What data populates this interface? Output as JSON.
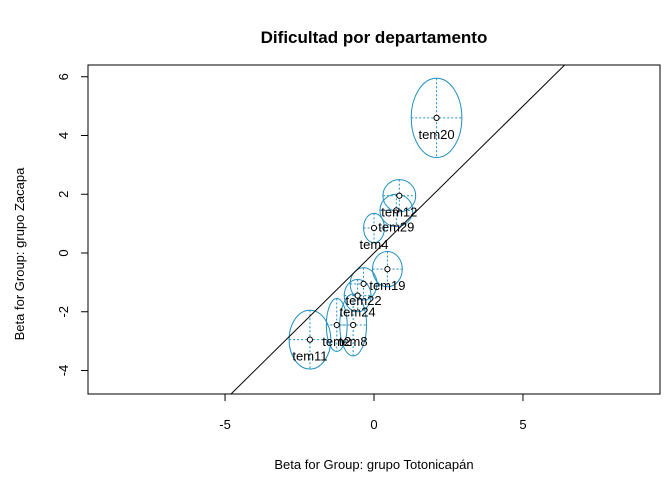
{
  "chart_data": {
    "type": "scatter",
    "title": "Dificultad por departamento",
    "xlabel": "Beta for Group: grupo Totonicapán",
    "ylabel": "Beta for Group: grupo Zacapa",
    "xlim": [
      -9.6,
      9.6
    ],
    "ylim": [
      -4.8,
      6.4
    ],
    "xticks": [
      -5,
      0,
      5
    ],
    "yticks": [
      -4,
      -2,
      0,
      2,
      4,
      6
    ],
    "identity_line": true,
    "colors": {
      "ellipse": "#1f8fc0",
      "point": "#000000",
      "line": "#000000"
    },
    "points": [
      {
        "label": "tem20",
        "x": 2.1,
        "y": 4.6,
        "rx": 0.85,
        "ry": 1.35
      },
      {
        "label": "tem12",
        "x": 0.85,
        "y": 1.95,
        "rx": 0.55,
        "ry": 0.55
      },
      {
        "label": "tem29",
        "x": 0.75,
        "y": 1.45,
        "rx": 0.55,
        "ry": 0.55
      },
      {
        "label": "tem4",
        "x": 0.0,
        "y": 0.85,
        "rx": 0.35,
        "ry": 0.5
      },
      {
        "label": "tem19",
        "x": 0.45,
        "y": -0.55,
        "rx": 0.5,
        "ry": 0.6
      },
      {
        "label": "tem22",
        "x": -0.35,
        "y": -1.05,
        "rx": 0.45,
        "ry": 0.55
      },
      {
        "label": "tem24",
        "x": -0.55,
        "y": -1.45,
        "rx": 0.45,
        "ry": 0.55
      },
      {
        "label": "tem11",
        "x": -2.15,
        "y": -2.95,
        "rx": 0.7,
        "ry": 1.0
      },
      {
        "label": "tem2",
        "x": -1.25,
        "y": -2.45,
        "rx": 0.35,
        "ry": 0.9
      },
      {
        "label": "tem8",
        "x": -0.7,
        "y": -2.45,
        "rx": 0.45,
        "ry": 1.05
      }
    ]
  }
}
